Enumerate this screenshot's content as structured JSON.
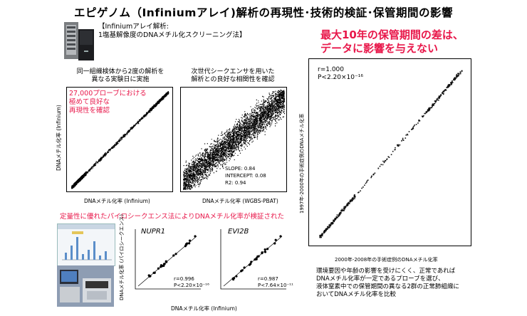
{
  "title": "エピゲノム（Infiniumアレイ)解析の再現性･技術的検証･保管期間の影響",
  "infinium_box": {
    "line1": "【Infiniumアレイ解析:",
    "line2": "1塩基解像度のDNAメチル化スクリーニング法】"
  },
  "panel_a": {
    "caption1": "同一組織検体から2度の解析を",
    "caption2": "異なる実験日に実施",
    "note1": "27,000プローブにおける",
    "note2": "極めて良好な",
    "note3": "再現性を確認",
    "ylabel": "DNAメチル化率 (Infinium)",
    "xlabel": "DNAメチル化率 (Infinium)"
  },
  "panel_b": {
    "caption1": "次世代シークエンサを用いた",
    "caption2": "解析との良好な相関性を確認",
    "slope": "SLOPE: 0.84",
    "intercept": "INTERCEPT: 0.08",
    "r2": "R2: 0.94",
    "xlabel": "DNAメチル化率 (WGBS-PBAT)"
  },
  "pyro": {
    "header": "定量性に優れたパイロシークエンス法によりDNAメチル化率が検証された",
    "ylabel": "DNAメチル化率 (パイロシークエンス)",
    "xlabel": "DNAメチル化率 (Infinium)",
    "plot1": {
      "gene": "NUPR1",
      "r": "r=0.996",
      "p": "P<2.20×10⁻¹⁶"
    },
    "plot2": {
      "gene": "EVI2B",
      "r": "r=0.987",
      "p": "P<7.64×10⁻¹¹"
    }
  },
  "storage": {
    "headline1": "最大10年の保管期間の差は、",
    "headline2": "データに影響を与えない",
    "r": "r=1.000",
    "p": "P<2.20×10⁻¹⁶",
    "ylabel": "1997年-2000年の手術症例のDNAメチル化率",
    "xlabel": "2000年-2008年の手術症例のDNAメチル化率",
    "desc1": "環境要因や年齢の影響を受けにくく、正常であれば",
    "desc2": "DNAメチル化率が一定であるプローブを選び、",
    "desc3": "液体窒素中での保管期間の異なる2群の正常肺組織に",
    "desc4": "おいてDNAメチル化率を比較"
  },
  "colors": {
    "accent": "#e8174a"
  },
  "icons": [
    "microarray-scanner-icon",
    "pyrosequencer-photo-icon",
    "pyrogram-chart-icon"
  ]
}
